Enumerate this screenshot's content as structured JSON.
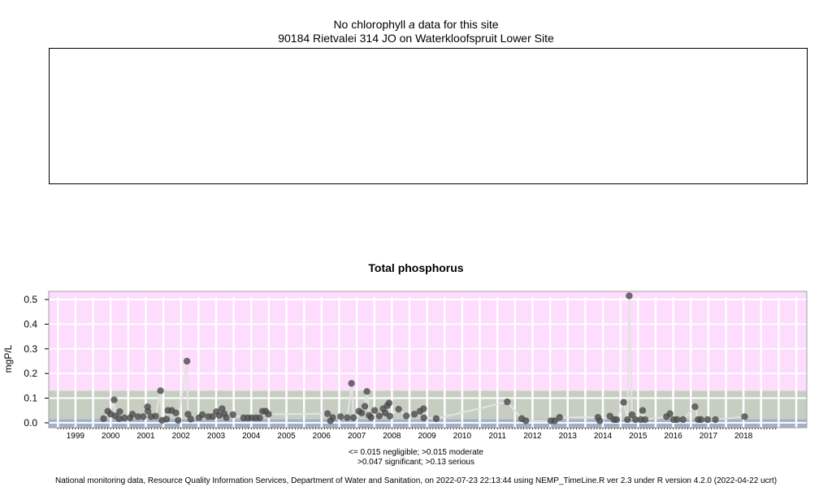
{
  "header": {
    "title_prefix": "No chlorophyll ",
    "title_italic": "a",
    "title_suffix": " data for this site",
    "site": "90184 Rietvalei 314 JO on Waterkloofspruit Lower Site"
  },
  "chart_data": {
    "type": "scatter",
    "title": "Total phosphorus",
    "xlabel": "",
    "ylabel": "mgP/L",
    "xlim": [
      1998.74,
      2020.3
    ],
    "ylim": [
      -0.02,
      0.533
    ],
    "yticks": [
      0.0,
      0.1,
      0.2,
      0.3,
      0.4,
      0.5
    ],
    "ytick_labels": [
      "0.0",
      "0.1",
      "0.2",
      "0.3",
      "0.4",
      "0.5"
    ],
    "xtick_labels": [
      "1999",
      "2000",
      "2001",
      "2002",
      "2003",
      "2004",
      "2005",
      "2006",
      "2007",
      "2008",
      "2009",
      "2010",
      "2011",
      "2012",
      "2013",
      "2014",
      "2015",
      "2016",
      "2017",
      "2018"
    ],
    "grid": true,
    "bands": [
      {
        "label": "negligible",
        "from": -0.02,
        "to": 0.015,
        "color": "#a3b1c8"
      },
      {
        "label": "moderate/significant",
        "from": 0.015,
        "to": 0.13,
        "color": "#c5cec1"
      },
      {
        "label": "serious",
        "from": 0.13,
        "to": 0.533,
        "color": "#fddcfd"
      }
    ],
    "line_color": "#e3e3e3",
    "point_color": "#4a4a4a",
    "points": [
      [
        2000.3,
        0.017
      ],
      [
        2000.42,
        0.047
      ],
      [
        2000.5,
        0.035
      ],
      [
        2000.6,
        0.093
      ],
      [
        2000.63,
        0.028
      ],
      [
        2000.74,
        0.017
      ],
      [
        2000.76,
        0.045
      ],
      [
        2000.89,
        0.02
      ],
      [
        2001.05,
        0.02
      ],
      [
        2001.12,
        0.035
      ],
      [
        2001.28,
        0.025
      ],
      [
        2001.43,
        0.025
      ],
      [
        2001.55,
        0.065
      ],
      [
        2001.56,
        0.047
      ],
      [
        2001.65,
        0.025
      ],
      [
        2001.78,
        0.027
      ],
      [
        2001.92,
        0.13
      ],
      [
        2001.96,
        0.01
      ],
      [
        2002.09,
        0.015
      ],
      [
        2002.13,
        0.05
      ],
      [
        2002.24,
        0.05
      ],
      [
        2002.36,
        0.04
      ],
      [
        2002.42,
        0.01
      ],
      [
        2002.67,
        0.25
      ],
      [
        2002.7,
        0.035
      ],
      [
        2002.78,
        0.015
      ],
      [
        2003.01,
        0.02
      ],
      [
        2003.11,
        0.033
      ],
      [
        2003.28,
        0.025
      ],
      [
        2003.4,
        0.025
      ],
      [
        2003.51,
        0.045
      ],
      [
        2003.59,
        0.03
      ],
      [
        2003.67,
        0.057
      ],
      [
        2003.73,
        0.037
      ],
      [
        2003.79,
        0.021
      ],
      [
        2003.98,
        0.033
      ],
      [
        2004.28,
        0.02
      ],
      [
        2004.4,
        0.02
      ],
      [
        2004.51,
        0.02
      ],
      [
        2004.63,
        0.02
      ],
      [
        2004.74,
        0.02
      ],
      [
        2004.82,
        0.047
      ],
      [
        2004.91,
        0.047
      ],
      [
        2004.99,
        0.035
      ],
      [
        2006.67,
        0.037
      ],
      [
        2006.75,
        0.008
      ],
      [
        2006.82,
        0.021
      ],
      [
        2007.04,
        0.025
      ],
      [
        2007.23,
        0.021
      ],
      [
        2007.35,
        0.16
      ],
      [
        2007.41,
        0.021
      ],
      [
        2007.56,
        0.047
      ],
      [
        2007.64,
        0.04
      ],
      [
        2007.73,
        0.067
      ],
      [
        2007.79,
        0.127
      ],
      [
        2007.85,
        0.03
      ],
      [
        2007.91,
        0.022
      ],
      [
        2008.01,
        0.05
      ],
      [
        2008.14,
        0.028
      ],
      [
        2008.25,
        0.057
      ],
      [
        2008.31,
        0.04
      ],
      [
        2008.37,
        0.07
      ],
      [
        2008.42,
        0.08
      ],
      [
        2008.44,
        0.027
      ],
      [
        2008.69,
        0.055
      ],
      [
        2008.91,
        0.028
      ],
      [
        2009.14,
        0.035
      ],
      [
        2009.3,
        0.047
      ],
      [
        2009.4,
        0.057
      ],
      [
        2009.41,
        0.02
      ],
      [
        2009.76,
        0.017
      ],
      [
        2011.78,
        0.085
      ],
      [
        2012.19,
        0.017
      ],
      [
        2012.31,
        0.008
      ],
      [
        2013.02,
        0.008
      ],
      [
        2013.13,
        0.008
      ],
      [
        2013.27,
        0.022
      ],
      [
        2014.36,
        0.022
      ],
      [
        2014.41,
        0.008
      ],
      [
        2014.7,
        0.027
      ],
      [
        2014.81,
        0.013
      ],
      [
        2014.89,
        0.013
      ],
      [
        2015.09,
        0.083
      ],
      [
        2015.2,
        0.013
      ],
      [
        2015.25,
        0.515
      ],
      [
        2015.33,
        0.033
      ],
      [
        2015.43,
        0.013
      ],
      [
        2015.58,
        0.013
      ],
      [
        2015.63,
        0.05
      ],
      [
        2015.7,
        0.013
      ],
      [
        2016.31,
        0.025
      ],
      [
        2016.41,
        0.037
      ],
      [
        2016.51,
        0.013
      ],
      [
        2016.61,
        0.013
      ],
      [
        2016.78,
        0.013
      ],
      [
        2017.12,
        0.065
      ],
      [
        2017.21,
        0.013
      ],
      [
        2017.29,
        0.013
      ],
      [
        2017.48,
        0.013
      ],
      [
        2017.7,
        0.013
      ],
      [
        2018.53,
        0.025
      ]
    ],
    "legend_line1": "<= 0.015 negligible; >0.015 moderate",
    "legend_line2": ">0.047 significant; >0.13 serious"
  },
  "footer": "National monitoring data, Resource Quality Information Services, Department of Water and Sanitation, on 2022-07-23 22:13:44 using NEMP_TimeLine.R ver 2.3 under R version 4.2.0 (2022-04-22 ucrt)"
}
